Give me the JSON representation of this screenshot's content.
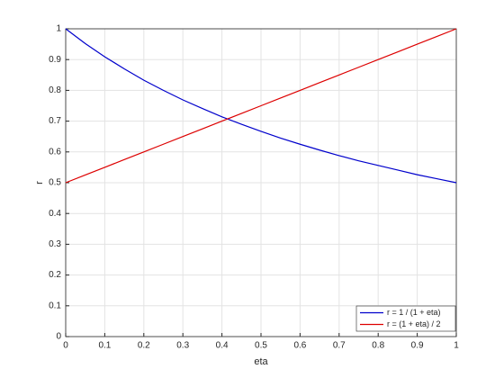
{
  "chart_data": {
    "type": "line",
    "xlabel": "eta",
    "ylabel": "r",
    "x": [
      0,
      0.05,
      0.1,
      0.15,
      0.2,
      0.25,
      0.3,
      0.35,
      0.4,
      0.45,
      0.5,
      0.55,
      0.6,
      0.65,
      0.7,
      0.75,
      0.8,
      0.85,
      0.9,
      0.95,
      1
    ],
    "series": [
      {
        "name": "r = 1 / (1 + eta)",
        "color": "#0000cc",
        "values": [
          1,
          0.952,
          0.909,
          0.87,
          0.833,
          0.8,
          0.769,
          0.741,
          0.714,
          0.69,
          0.667,
          0.645,
          0.625,
          0.606,
          0.588,
          0.571,
          0.556,
          0.541,
          0.526,
          0.513,
          0.5
        ]
      },
      {
        "name": "r = (1 + eta) / 2",
        "color": "#dd0000",
        "values": [
          0.5,
          0.525,
          0.55,
          0.575,
          0.6,
          0.625,
          0.65,
          0.675,
          0.7,
          0.725,
          0.75,
          0.775,
          0.8,
          0.825,
          0.85,
          0.875,
          0.9,
          0.925,
          0.95,
          0.975,
          1
        ]
      }
    ],
    "xlim": [
      0,
      1
    ],
    "ylim": [
      0,
      1
    ],
    "xticks": [
      0,
      0.1,
      0.2,
      0.3,
      0.4,
      0.5,
      0.6,
      0.7,
      0.8,
      0.9,
      1
    ],
    "yticks": [
      0,
      0.1,
      0.2,
      0.3,
      0.4,
      0.5,
      0.6,
      0.7,
      0.8,
      0.9,
      1
    ],
    "grid": true,
    "legend": "lower right"
  }
}
